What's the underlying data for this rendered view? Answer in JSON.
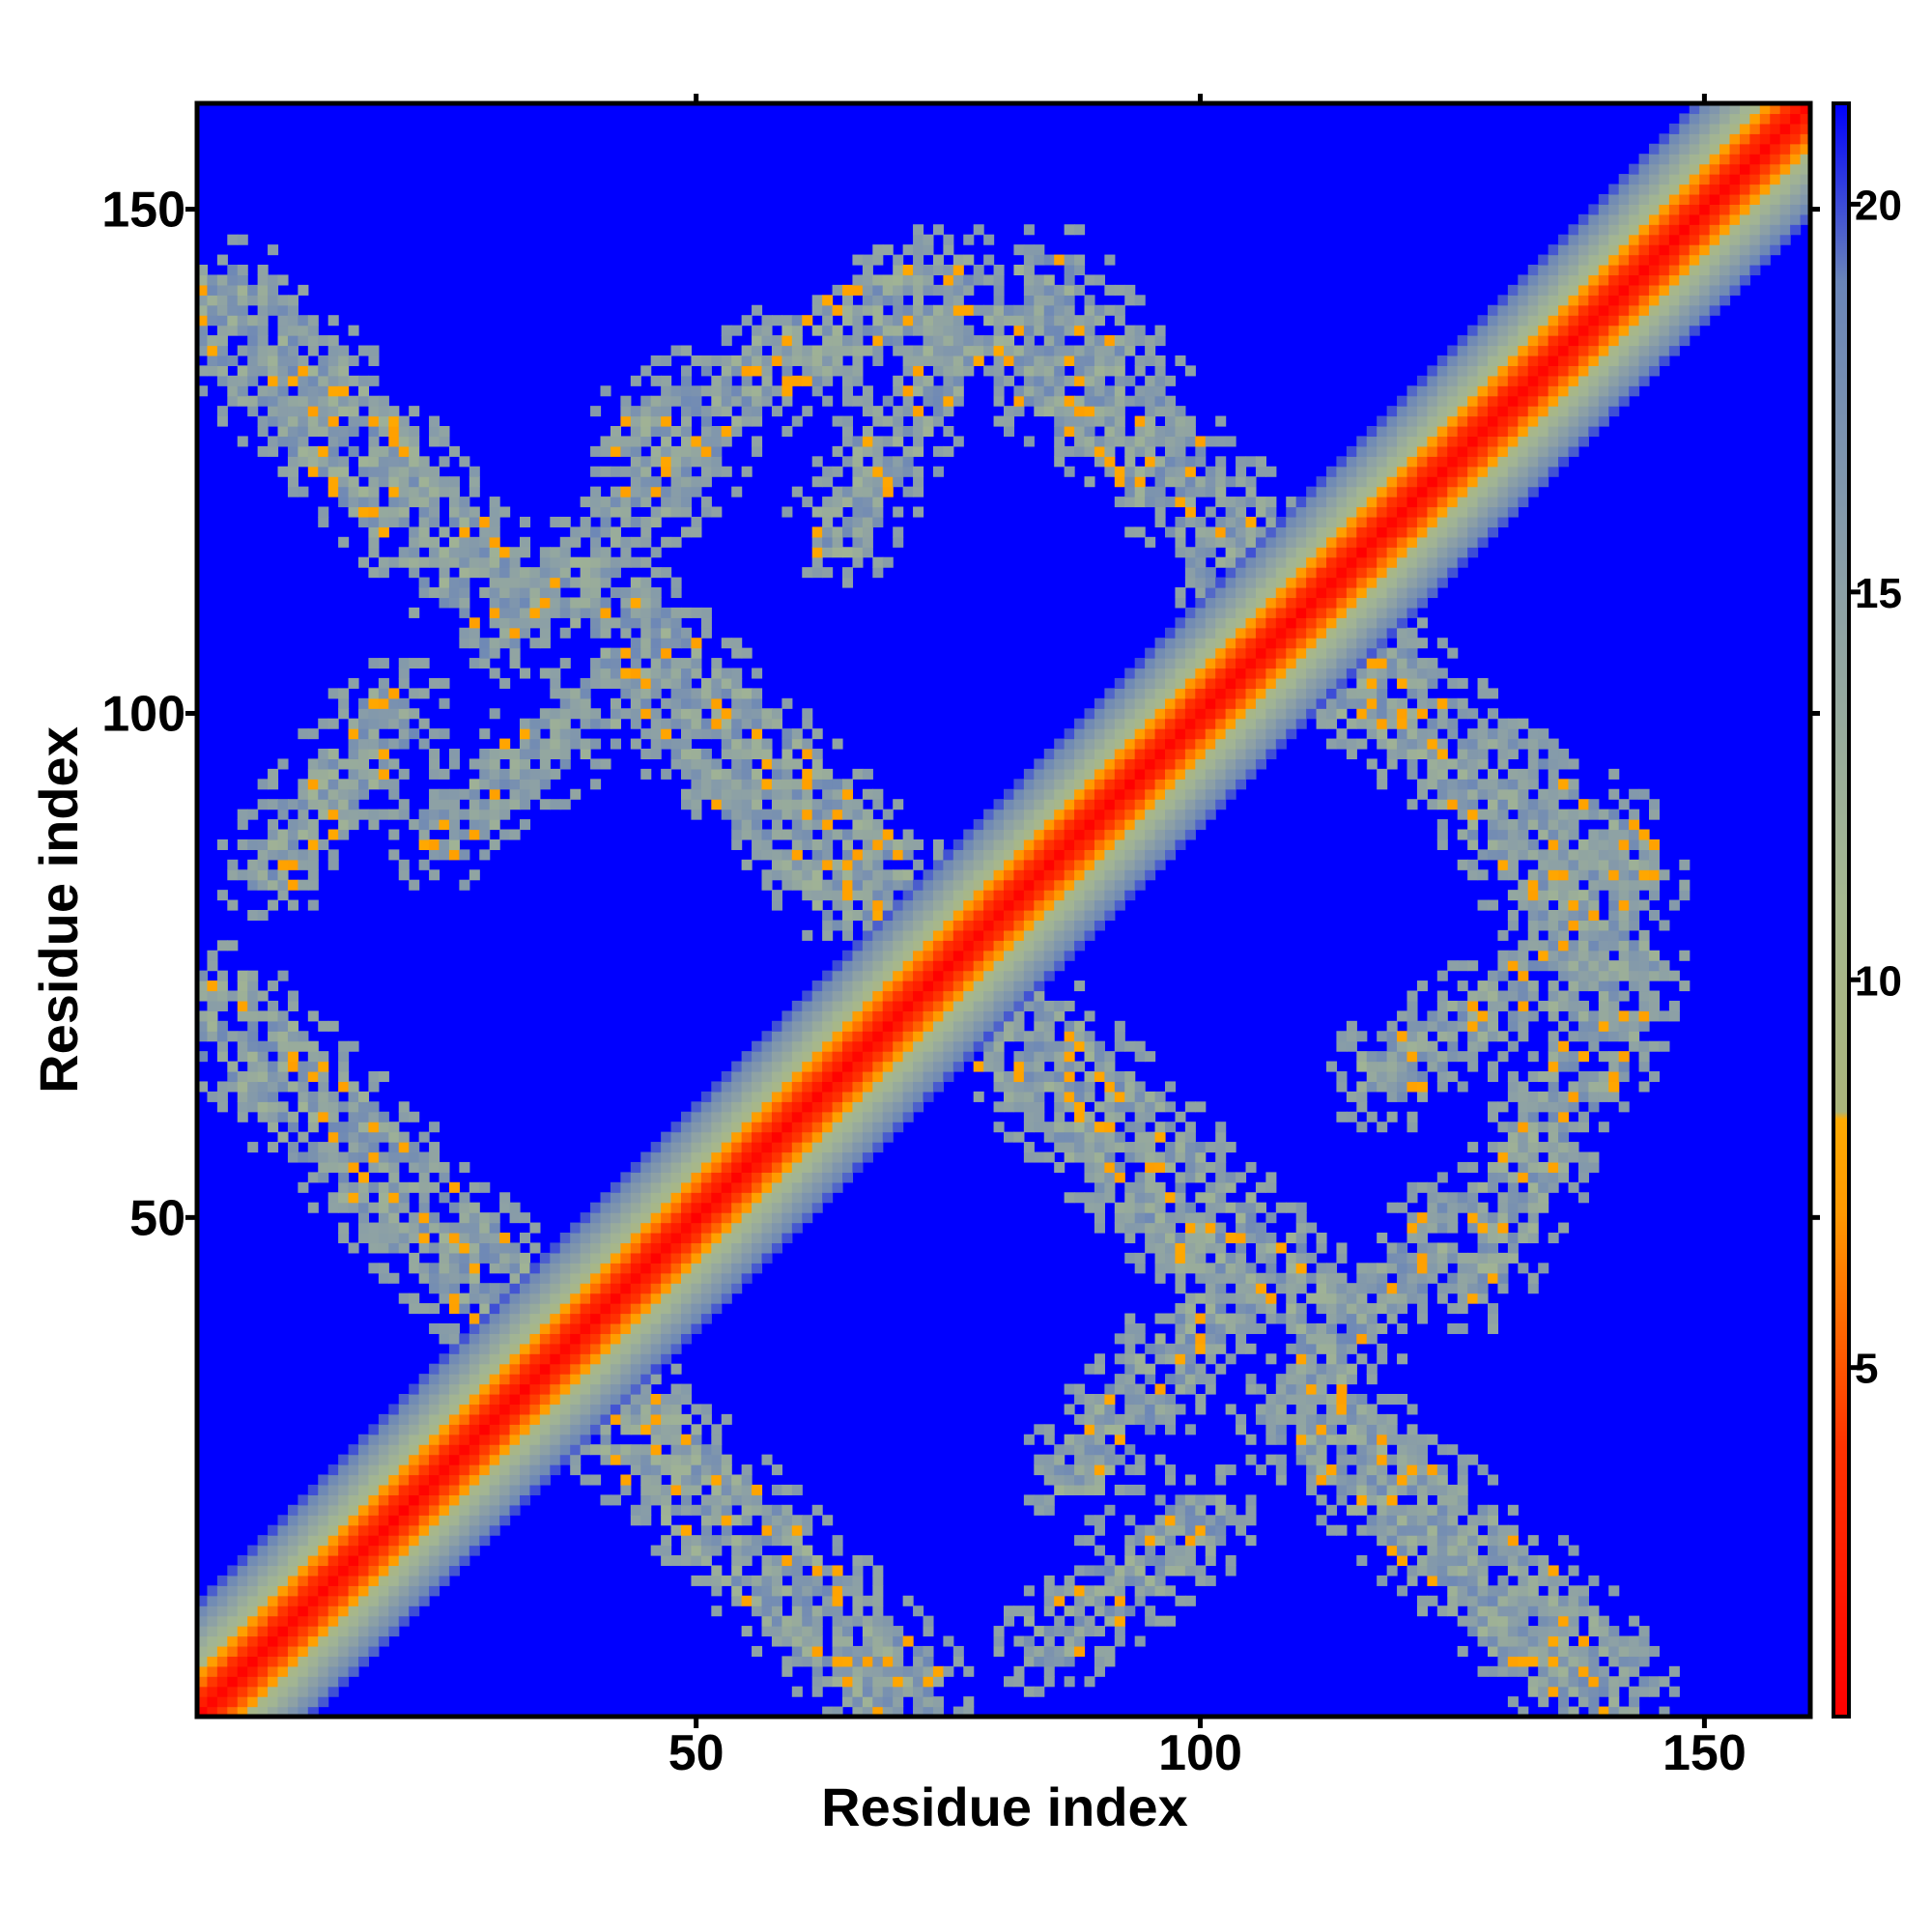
{
  "chart_data": {
    "type": "heatmap",
    "title": "",
    "xlabel": "Residue index",
    "ylabel": "Residue index",
    "n_residues": 160,
    "xlim": [
      1,
      160
    ],
    "ylim": [
      1,
      160
    ],
    "x_ticks": [
      50,
      100,
      150
    ],
    "x_tick_labels": [
      "50",
      "100",
      "150"
    ],
    "y_ticks": [
      50,
      100,
      150
    ],
    "y_tick_labels": [
      "50",
      "100",
      "150"
    ],
    "colorbar": {
      "range": [
        0.5,
        21.3
      ],
      "ticks": [
        5,
        10,
        15,
        20
      ],
      "tick_labels": [
        "5",
        "10",
        "15",
        "20"
      ],
      "stops": [
        {
          "value": 0.5,
          "color": "#ff0000"
        },
        {
          "value": 4.0,
          "color": "#ff3300"
        },
        {
          "value": 7.0,
          "color": "#ff9900"
        },
        {
          "value": 8.2,
          "color": "#ffaa00"
        },
        {
          "value": 8.3,
          "color": "#aab47a"
        },
        {
          "value": 11.0,
          "color": "#a6b890"
        },
        {
          "value": 15.0,
          "color": "#8ca0a6"
        },
        {
          "value": 19.0,
          "color": "#6a85b8"
        },
        {
          "value": 21.3,
          "color": "#0000ff"
        }
      ]
    },
    "diagonal_band": {
      "core_width_residues": 4,
      "band_halfwidth_residues": 11
    },
    "contact_segments": [
      {
        "x_from": 1,
        "y_from": 140,
        "x_to": 28,
        "y_to": 113,
        "width": 8
      },
      {
        "x_from": 3,
        "y_from": 70,
        "x_to": 70,
        "y_to": 3,
        "width": 9
      },
      {
        "x_from": 40,
        "y_from": 112,
        "x_to": 72,
        "y_to": 80,
        "width": 8
      },
      {
        "x_from": 45,
        "y_from": 127,
        "x_to": 70,
        "y_to": 141,
        "width": 7
      },
      {
        "x_from": 75,
        "y_from": 142,
        "x_to": 105,
        "y_to": 117,
        "width": 8
      },
      {
        "x_from": 70,
        "y_from": 78,
        "x_to": 100,
        "y_to": 48,
        "width": 8
      },
      {
        "x_from": 88,
        "y_from": 25,
        "x_to": 105,
        "y_to": 45,
        "width": 6
      },
      {
        "x_from": 113,
        "y_from": 105,
        "x_to": 142,
        "y_to": 85,
        "width": 8
      },
      {
        "x_from": 118,
        "y_from": 64,
        "x_to": 136,
        "y_to": 75,
        "width": 6
      },
      {
        "x_from": 113,
        "y_from": 30,
        "x_to": 141,
        "y_to": 5,
        "width": 7
      },
      {
        "x_from": 8,
        "y_from": 85,
        "x_to": 20,
        "y_to": 100,
        "width": 6
      },
      {
        "x_from": 108,
        "y_from": 30,
        "x_to": 125,
        "y_to": 50,
        "width": 5
      }
    ]
  }
}
